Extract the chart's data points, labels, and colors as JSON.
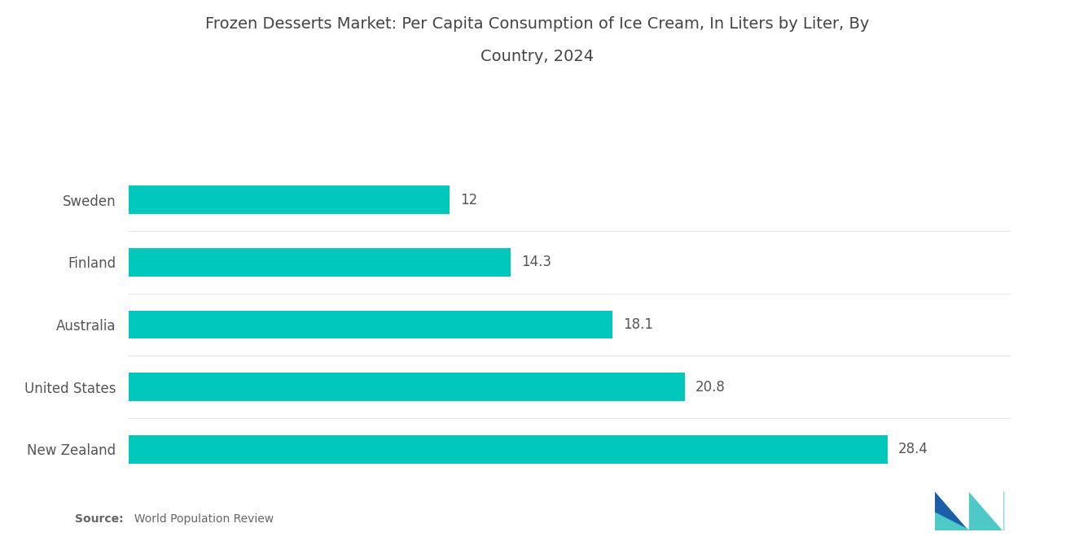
{
  "title_line1": "Frozen Desserts Market: Per Capita Consumption of Ice Cream, In Liters by Liter, By",
  "title_line2": "Country, 2024",
  "countries": [
    "New Zealand",
    "United States",
    "Australia",
    "Finland",
    "Sweden"
  ],
  "values": [
    28.4,
    20.8,
    18.1,
    14.3,
    12
  ],
  "bar_color": "#00C8BC",
  "background_color": "#ffffff",
  "title_fontsize": 14,
  "label_fontsize": 12,
  "value_fontsize": 12,
  "source_bold": "Source:",
  "source_rest": "  World Population Review",
  "xlim": [
    0,
    33
  ],
  "bar_height": 0.45,
  "logo_color_dark": "#1a5fa8",
  "logo_color_light": "#4fc8c8"
}
